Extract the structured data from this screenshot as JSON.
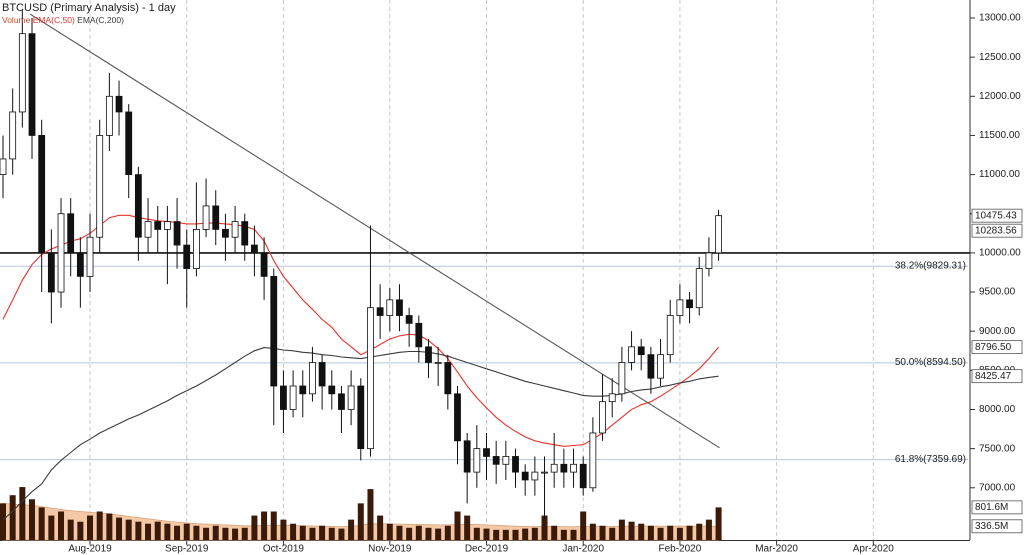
{
  "chart_data": {
    "type": "candlestick",
    "title": "BTCUSD (Primary Analysis) - 1 day",
    "categories": [
      null,
      null,
      null,
      null,
      null,
      null,
      null,
      null,
      null,
      "Aug-2019",
      null,
      null,
      null,
      null,
      null,
      null,
      null,
      null,
      null,
      "Sep-2019",
      null,
      null,
      null,
      null,
      null,
      null,
      null,
      null,
      null,
      "Oct-2019",
      null,
      null,
      null,
      null,
      null,
      null,
      null,
      null,
      null,
      null,
      "Nov-2019",
      null,
      null,
      null,
      null,
      null,
      null,
      null,
      null,
      null,
      "Dec-2019",
      null,
      null,
      null,
      null,
      null,
      null,
      null,
      null,
      null,
      "Jan-2020",
      null,
      null,
      null,
      null,
      null,
      null,
      null,
      null,
      null,
      "Feb-2020",
      null,
      null,
      null,
      null,
      null,
      null,
      null,
      null,
      null,
      "Mar-2020",
      null,
      null,
      null,
      null,
      null,
      null,
      null,
      null,
      null,
      "Apr-2020",
      null,
      null,
      null,
      null,
      null,
      null,
      null,
      null,
      null
    ],
    "open": [
      11000,
      11200,
      11800,
      12800,
      11500,
      10000,
      9500,
      10500,
      10000,
      9700,
      10200,
      11500,
      12000,
      11800,
      11000,
      10200,
      10400,
      10300,
      10400,
      10100,
      9800,
      10300,
      10600,
      10300,
      10200,
      10400,
      10100,
      10000,
      9700,
      8300,
      8000,
      8300,
      8200,
      8600,
      8300,
      8200,
      8000,
      8300,
      7500,
      9300,
      9200,
      9400,
      9200,
      9100,
      8800,
      8600,
      8600,
      8200,
      7600,
      7200,
      7500,
      7400,
      7300,
      7400,
      7200,
      7100,
      7200,
      7200,
      7300,
      7200,
      7300,
      7000,
      7700,
      8100,
      8200,
      8600,
      8800,
      8700,
      8400,
      8700,
      9200,
      9400,
      9300,
      9800,
      10000,
      null,
      null,
      null,
      null,
      null,
      null,
      null,
      null,
      null,
      null,
      null,
      null,
      null,
      null,
      null,
      null,
      null,
      null,
      null,
      null,
      null,
      null,
      null,
      null,
      null
    ],
    "high": [
      11500,
      12100,
      13100,
      13000,
      11700,
      10300,
      10700,
      10700,
      10200,
      10500,
      11700,
      12300,
      12200,
      11900,
      11100,
      10700,
      10600,
      10600,
      10700,
      10300,
      10900,
      10950,
      10800,
      10500,
      10600,
      10500,
      10350,
      10200,
      9800,
      8500,
      8500,
      8500,
      8800,
      8700,
      8500,
      8300,
      8500,
      8400,
      10350,
      9600,
      9550,
      9600,
      9300,
      9200,
      8900,
      8800,
      8700,
      8300,
      7700,
      7800,
      7700,
      7600,
      7600,
      7500,
      7300,
      7400,
      7400,
      7700,
      7500,
      7500,
      7400,
      7900,
      8450,
      8400,
      8800,
      9000,
      8900,
      8800,
      8900,
      9400,
      9600,
      9500,
      9950,
      10200,
      10550,
      null,
      null,
      null,
      null,
      null,
      null,
      null,
      null,
      null,
      null,
      null,
      null,
      null,
      null,
      null,
      null,
      null,
      null,
      null,
      null,
      null,
      null,
      null,
      null,
      null
    ],
    "low": [
      10700,
      11000,
      11600,
      11200,
      9500,
      9100,
      9300,
      9700,
      9300,
      9500,
      10000,
      11300,
      11500,
      10700,
      9900,
      10000,
      10000,
      9600,
      9800,
      9300,
      9700,
      10200,
      10100,
      9900,
      10000,
      9900,
      9700,
      9400,
      7800,
      7700,
      7900,
      7900,
      8100,
      8000,
      8000,
      7700,
      7800,
      7350,
      7400,
      8900,
      9000,
      9000,
      8800,
      8600,
      8400,
      8300,
      8000,
      7300,
      6800,
      7000,
      7100,
      7050,
      7100,
      7000,
      6900,
      6900,
      6600,
      7000,
      7000,
      7000,
      6900,
      6950,
      7600,
      7900,
      8100,
      8500,
      8500,
      8200,
      8300,
      8600,
      9100,
      9100,
      9200,
      9700,
      9900,
      null,
      null,
      null,
      null,
      null,
      null,
      null,
      null,
      null,
      null,
      null,
      null,
      null,
      null,
      null,
      null,
      null,
      null,
      null,
      null,
      null,
      null,
      null,
      null,
      null
    ],
    "close": [
      11200,
      11800,
      12800,
      11500,
      10000,
      9500,
      10500,
      10000,
      9700,
      10200,
      11500,
      12000,
      11800,
      11000,
      10200,
      10400,
      10300,
      10400,
      10100,
      9800,
      10300,
      10600,
      10300,
      10200,
      10400,
      10100,
      10000,
      9700,
      8300,
      8000,
      8300,
      8200,
      8600,
      8300,
      8200,
      8000,
      8300,
      7500,
      9300,
      9200,
      9400,
      9200,
      9100,
      8800,
      8600,
      8600,
      8200,
      7600,
      7200,
      7500,
      7400,
      7300,
      7400,
      7200,
      7100,
      7200,
      7200,
      7300,
      7200,
      7300,
      7000,
      7700,
      8100,
      8200,
      8600,
      8800,
      8700,
      8400,
      8700,
      9200,
      9400,
      9300,
      9800,
      10000,
      10475.43,
      null,
      null,
      null,
      null,
      null,
      null,
      null,
      null,
      null,
      null,
      null,
      null,
      null,
      null,
      null,
      null,
      null,
      null,
      null,
      null,
      null,
      null,
      null,
      null,
      null
    ],
    "series": [
      {
        "name": "EMA(C,50)",
        "color": "#e8322a",
        "values": [
          9150,
          9400,
          9650,
          9850,
          9980,
          10050,
          10100,
          10150,
          10180,
          10250,
          10350,
          10450,
          10480,
          10480,
          10450,
          10430,
          10410,
          10400,
          10390,
          10370,
          10370,
          10380,
          10380,
          10370,
          10360,
          10340,
          10300,
          10150,
          9900,
          9700,
          9550,
          9400,
          9280,
          9150,
          9050,
          8900,
          8800,
          8700,
          8760,
          8830,
          8900,
          8940,
          8960,
          8950,
          8880,
          8780,
          8650,
          8480,
          8300,
          8150,
          8020,
          7900,
          7800,
          7720,
          7650,
          7600,
          7570,
          7550,
          7530,
          7540,
          7550,
          7620,
          7700,
          7800,
          7900,
          8000,
          8060,
          8100,
          8170,
          8250,
          8330,
          8420,
          8520,
          8650,
          8796.5,
          null,
          null,
          null,
          null,
          null,
          null,
          null,
          null,
          null,
          null,
          null,
          null,
          null,
          null,
          null,
          null,
          null,
          null,
          null,
          null,
          null,
          null,
          null,
          null,
          null
        ]
      },
      {
        "name": "EMA(C,200)",
        "color": "#3a3a3a",
        "values": [
          6590,
          6700,
          6830,
          6950,
          7050,
          7230,
          7350,
          7450,
          7550,
          7620,
          7700,
          7760,
          7820,
          7880,
          7930,
          7990,
          8050,
          8110,
          8180,
          8240,
          8300,
          8370,
          8440,
          8520,
          8600,
          8680,
          8750,
          8790,
          8780,
          8760,
          8750,
          8730,
          8720,
          8700,
          8690,
          8670,
          8660,
          8650,
          8670,
          8690,
          8710,
          8730,
          8740,
          8740,
          8730,
          8710,
          8680,
          8640,
          8600,
          8560,
          8520,
          8480,
          8440,
          8400,
          8360,
          8330,
          8300,
          8270,
          8240,
          8210,
          8180,
          8170,
          8170,
          8180,
          8200,
          8230,
          8250,
          8260,
          8290,
          8310,
          8340,
          8360,
          8390,
          8410,
          8425.47,
          null,
          null,
          null,
          null,
          null,
          null,
          null,
          null,
          null,
          null,
          null,
          null,
          null,
          null,
          null,
          null,
          null,
          null,
          null,
          null,
          null,
          null,
          null,
          null,
          null
        ]
      }
    ],
    "volume": {
      "name": "Volume",
      "color": "#3b1a0a",
      "values": [
        900,
        1100,
        1300,
        1000,
        800,
        600,
        700,
        500,
        450,
        600,
        700,
        650,
        550,
        500,
        450,
        400,
        450,
        400,
        350,
        400,
        350,
        300,
        350,
        300,
        280,
        300,
        600,
        700,
        700,
        500,
        400,
        350,
        300,
        350,
        300,
        280,
        500,
        900,
        1250,
        600,
        400,
        350,
        300,
        350,
        300,
        280,
        350,
        700,
        600,
        300,
        280,
        250,
        250,
        250,
        280,
        300,
        600,
        350,
        250,
        250,
        700,
        400,
        350,
        300,
        500,
        450,
        400,
        350,
        300,
        350,
        300,
        350,
        400,
        500,
        801.6,
        null,
        null,
        null,
        null,
        null,
        null,
        null,
        null,
        null,
        null,
        null,
        null,
        null,
        null,
        null,
        null,
        null,
        null,
        null,
        null,
        null,
        null,
        null,
        null,
        null
      ],
      "ema": {
        "color": "#f4c9a6",
        "values": [
          900,
          880,
          870,
          850,
          820,
          780,
          750,
          720,
          700,
          680,
          660,
          640,
          610,
          580,
          550,
          520,
          490,
          460,
          440,
          420,
          400,
          390,
          380,
          370,
          360,
          350,
          350,
          355,
          360,
          360,
          355,
          350,
          345,
          340,
          335,
          330,
          335,
          360,
          400,
          400,
          395,
          390,
          385,
          380,
          375,
          370,
          370,
          380,
          385,
          380,
          370,
          360,
          350,
          340,
          335,
          330,
          335,
          335,
          330,
          325,
          335,
          335,
          335,
          335,
          340,
          340,
          340,
          340,
          340,
          340,
          340,
          340,
          340,
          340,
          336.5,
          null,
          null,
          null,
          null,
          null,
          null,
          null,
          null,
          null,
          null,
          null,
          null,
          null,
          null,
          null,
          null,
          null,
          null,
          null,
          null,
          null,
          null,
          null,
          null,
          null
        ]
      },
      "ylim": [
        0,
        1400
      ],
      "markers": [
        {
          "value": 801.6,
          "label": "801.6M"
        },
        {
          "value": 336.5,
          "label": "336.5M"
        }
      ]
    },
    "ylim": [
      6333,
      13230
    ],
    "yticks": [
      {
        "value": 7000,
        "label": "7000.00"
      },
      {
        "value": 7500,
        "label": "7500.00"
      },
      {
        "value": 8000,
        "label": "8000.00"
      },
      {
        "value": 8500,
        "label": "8500.00"
      },
      {
        "value": 9000,
        "label": "9000.00"
      },
      {
        "value": 9500,
        "label": "9500.00"
      },
      {
        "value": 10000,
        "label": "10000.00"
      },
      {
        "value": 10500,
        "label": "10500.00"
      },
      {
        "value": 11000,
        "label": "11000.00"
      },
      {
        "value": 11500,
        "label": "11500.00"
      },
      {
        "value": 12000,
        "label": "12000.00"
      },
      {
        "value": 12500,
        "label": "12500.00"
      },
      {
        "value": 13000,
        "label": "13000.00"
      }
    ],
    "hlines": [
      {
        "value": 10000,
        "color": "#111111"
      }
    ],
    "fib": [
      {
        "value": 9829.31,
        "label": "38.2%(9829.31)"
      },
      {
        "value": 8594.5,
        "label": "50.0%(8594.50)"
      },
      {
        "value": 7359.69,
        "label": "61.8%(7359.69)"
      }
    ],
    "price_markers": [
      {
        "value": 10475.43,
        "label": "10475.43"
      },
      {
        "value": 10283.56,
        "label": "10283.56"
      },
      {
        "value": 8796.5,
        "label": "8796.50"
      },
      {
        "value": 8425.47,
        "label": "8425.47"
      }
    ],
    "trendline": {
      "from": [
        2.8,
        13050
      ],
      "to": [
        74.1,
        7510
      ],
      "color": "#555555"
    },
    "grid": true
  }
}
